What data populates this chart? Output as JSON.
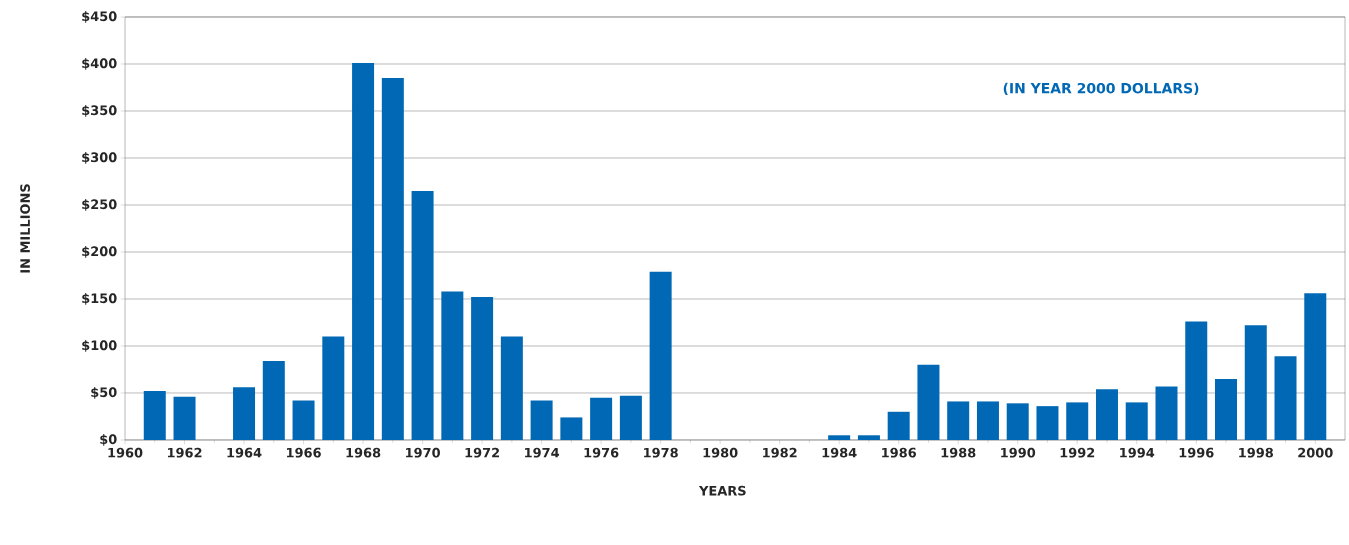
{
  "chart_data": {
    "type": "bar",
    "xlabel": "YEARS",
    "ylabel": "IN MILLIONS",
    "annotations": [
      "(IN YEAR 2000 DOLLARS)"
    ],
    "x": [
      1961,
      1962,
      1963,
      1964,
      1965,
      1966,
      1967,
      1968,
      1969,
      1970,
      1971,
      1972,
      1973,
      1974,
      1975,
      1976,
      1977,
      1978,
      1979,
      1980,
      1981,
      1982,
      1983,
      1984,
      1985,
      1986,
      1987,
      1988,
      1989,
      1990,
      1991,
      1992,
      1993,
      1994,
      1995,
      1996,
      1997,
      1998,
      1999,
      2000
    ],
    "values": [
      52,
      46,
      0,
      56,
      84,
      42,
      110,
      401,
      385,
      265,
      158,
      152,
      110,
      42,
      24,
      45,
      47,
      179,
      0,
      0,
      0,
      0,
      0,
      5,
      5,
      30,
      80,
      41,
      41,
      39,
      36,
      40,
      54,
      40,
      57,
      126,
      65,
      122,
      89,
      156
    ],
    "color": "#0068b4",
    "xlim": [
      1960,
      2001
    ],
    "ylim": [
      0,
      450
    ],
    "xticks": [
      1960,
      1962,
      1964,
      1966,
      1968,
      1970,
      1972,
      1974,
      1976,
      1978,
      1980,
      1982,
      1984,
      1986,
      1988,
      1990,
      1992,
      1994,
      1996,
      1998,
      2000
    ],
    "yticks": [
      {
        "value": 0,
        "label": "$0"
      },
      {
        "value": 50,
        "label": "$50"
      },
      {
        "value": 100,
        "label": "$100"
      },
      {
        "value": 150,
        "label": "$150"
      },
      {
        "value": 200,
        "label": "$200"
      },
      {
        "value": 250,
        "label": "$250"
      },
      {
        "value": 300,
        "label": "$300"
      },
      {
        "value": 350,
        "label": "$350"
      },
      {
        "value": 400,
        "label": "$400"
      },
      {
        "value": 450,
        "label": "$450"
      }
    ],
    "grid": "y"
  }
}
